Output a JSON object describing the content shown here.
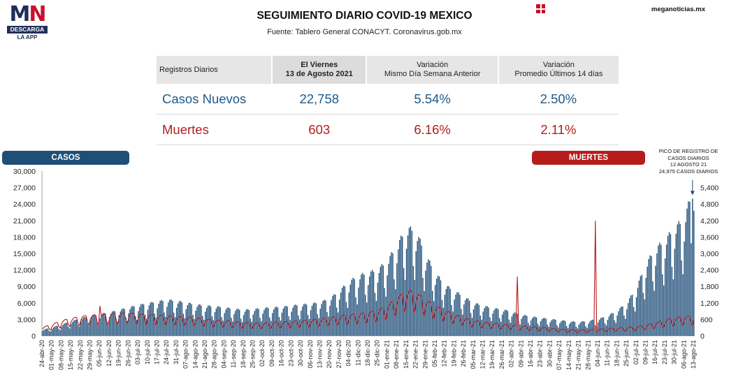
{
  "brand": {
    "logo_m": "M",
    "logo_n": "N",
    "logo_bar": "DESCARGA",
    "logo_sub": "LA APP",
    "site": "meganoticias.mx"
  },
  "header": {
    "title": "SEGUIMIENTO DIARIO COVID-19 MEXICO",
    "subtitle": "Fuente: Tablero General CONACYT. Coronavirus.gob.mx"
  },
  "table": {
    "headers": {
      "col0": "Registros Diarios",
      "col1a": "El Viernes",
      "col1b": "13 de Agosto 2021",
      "col2a": "Variación",
      "col2b": "Mismo Día Semana Anterior",
      "col3a": "Variación",
      "col3b": "Promedio Últimos 14 días"
    },
    "rows": {
      "casos": {
        "label": "Casos Nuevos",
        "value": "22,758",
        "var_semana": "5.54%",
        "var_prom": "2.50%"
      },
      "muertes": {
        "label": "Muertes",
        "value": "603",
        "var_semana": "6.16%",
        "var_prom": "2.11%"
      }
    }
  },
  "legend": {
    "casos": "CASOS",
    "muertes": "MUERTES"
  },
  "annotation": {
    "line1": "PICO DE REGISTRO DE",
    "line2": "CASOS DIARIOS",
    "line3": "12 AGOSTO 21",
    "line4": "24,975 CASOS DIARIOS"
  },
  "colors": {
    "casos": "#1f4e79",
    "muertes": "#b71c1c"
  },
  "chart_data": {
    "type": "bar",
    "title": "SEGUIMIENTO DIARIO COVID-19 MEXICO",
    "ylim_left": [
      0,
      30000
    ],
    "ylim_right": [
      0,
      6000
    ],
    "yticks_left": [
      "30,000",
      "27,000",
      "24,000",
      "21,000",
      "18,000",
      "15,000",
      "12,000",
      "9,000",
      "6,000",
      "3,000",
      "0"
    ],
    "yticks_right": [
      "5,400",
      "4,800",
      "4,200",
      "3,600",
      "3,000",
      "2,400",
      "1,800",
      "1,200",
      "600",
      "0"
    ],
    "yticks_right_values": [
      5400,
      4800,
      4200,
      3600,
      3000,
      2400,
      1800,
      1200,
      600,
      0
    ],
    "x_labels": [
      "24-abr-20",
      "01-may-20",
      "08-may-20",
      "15-may-20",
      "22-may-20",
      "29-may-20",
      "05-jun-20",
      "12-jun-20",
      "19-jun-20",
      "26-jun-20",
      "03-jul-20",
      "10-jul-20",
      "17-jul-20",
      "24-jul-20",
      "31-jul-20",
      "07-ago-20",
      "14-ago-20",
      "21-ago-20",
      "28-ago-20",
      "04-sep-20",
      "11-sep-20",
      "18-sep-20",
      "25-sep-20",
      "02-oct-20",
      "09-oct-20",
      "16-oct-20",
      "23-oct-20",
      "30-oct-20",
      "06-nov-20",
      "13-nov-20",
      "20-nov-20",
      "27-nov-20",
      "04-dic-20",
      "11-dic-20",
      "18-dic-20",
      "25-dic-20",
      "01-ene-21",
      "08-ene-21",
      "15-ene-21",
      "22-ene-21",
      "29-ene-21",
      "05-feb-21",
      "12-feb-21",
      "19-feb-21",
      "26-feb-21",
      "05-mar-21",
      "12-mar-21",
      "19-mar-21",
      "26-mar-21",
      "02-abr-21",
      "09-abr-21",
      "16-abr-21",
      "23-abr-21",
      "30-abr-21",
      "07-may-21",
      "14-may-21",
      "21-may-21",
      "28-may-21",
      "04-jun-21",
      "11-jun-21",
      "18-jun-21",
      "25-jun-21",
      "02-jul-21",
      "09-jul-21",
      "16-jul-21",
      "23-jul-21",
      "30-jul-21",
      "06-ago-21",
      "13-ago-21"
    ],
    "series": [
      {
        "name": "CASOS",
        "axis": "left",
        "weekly_avg": [
          1000,
          1400,
          1900,
          2400,
          2900,
          3300,
          3600,
          3900,
          4300,
          4700,
          5100,
          5400,
          5700,
          6000,
          5800,
          5500,
          5200,
          5000,
          4900,
          4700,
          4500,
          4300,
          4400,
          4600,
          4700,
          4800,
          5000,
          5200,
          5300,
          5600,
          6200,
          7500,
          9000,
          10000,
          10500,
          11000,
          12500,
          15000,
          18000,
          17500,
          13500,
          10500,
          8500,
          7500,
          6500,
          5500,
          5000,
          4600,
          4400,
          4000,
          3500,
          3200,
          3000,
          2800,
          2600,
          2400,
          2300,
          2500,
          2800,
          3300,
          4200,
          5500,
          8000,
          12000,
          14500,
          16000,
          18000,
          19500,
          24975
        ]
      },
      {
        "name": "MUERTES",
        "axis": "right",
        "weekly_avg": [
          280,
          380,
          500,
          580,
          640,
          680,
          700,
          720,
          740,
          760,
          720,
          700,
          680,
          660,
          640,
          620,
          600,
          560,
          520,
          500,
          470,
          440,
          420,
          420,
          440,
          460,
          480,
          500,
          520,
          560,
          600,
          650,
          700,
          720,
          780,
          850,
          1000,
          1250,
          1500,
          1450,
          1200,
          1000,
          850,
          700,
          600,
          500,
          460,
          420,
          380,
          360,
          330,
          300,
          280,
          250,
          220,
          200,
          190,
          200,
          220,
          240,
          260,
          280,
          300,
          360,
          440,
          520,
          600,
          640,
          650
        ]
      }
    ],
    "peaks": [
      {
        "series": "MUERTES",
        "date": "05-jun-20",
        "value": 1092
      },
      {
        "series": "MUERTES",
        "date": "06-abr-21",
        "value": 2159
      },
      {
        "series": "MUERTES",
        "date": "02-jun-21",
        "value": 4191
      },
      {
        "series": "CASOS",
        "date": "12-ago-21",
        "value": 24975
      }
    ]
  }
}
